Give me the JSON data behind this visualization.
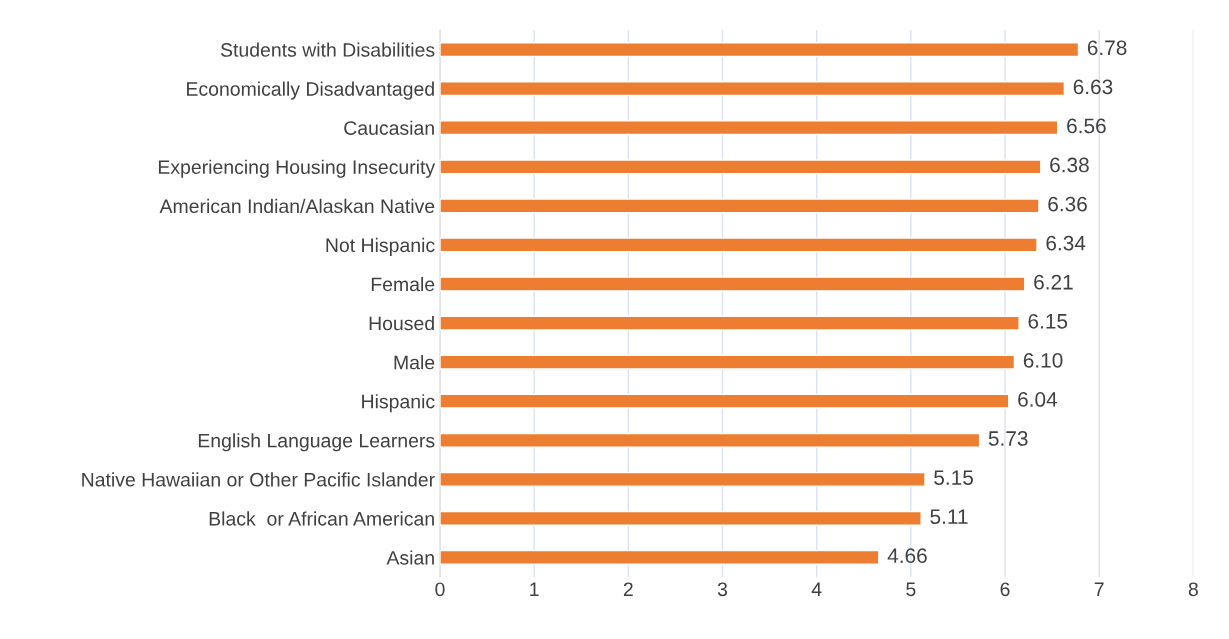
{
  "chart_data": {
    "type": "bar",
    "orientation": "horizontal",
    "categories": [
      "Students with Disabilities",
      "Economically Disadvantaged",
      "Caucasian",
      "Experiencing Housing Insecurity",
      "American Indian/Alaskan Native",
      "Not Hispanic",
      "Female",
      "Housed",
      "Male",
      "Hispanic",
      "English Language Learners",
      "Native Hawaiian or Other Pacific Islander",
      "Black  or African American",
      "Asian"
    ],
    "values": [
      6.78,
      6.63,
      6.56,
      6.38,
      6.36,
      6.34,
      6.21,
      6.15,
      6.1,
      6.04,
      5.73,
      5.15,
      5.11,
      4.66
    ],
    "value_labels": [
      "6.78",
      "6.63",
      "6.56",
      "6.38",
      "6.36",
      "6.34",
      "6.21",
      "6.15",
      "6.10",
      "6.04",
      "5.73",
      "5.15",
      "5.11",
      "4.66"
    ],
    "color": "#ed7d31",
    "xlim": [
      0,
      8
    ],
    "xticks": [
      0,
      1,
      2,
      3,
      4,
      5,
      6,
      7,
      8
    ],
    "grid": "x"
  }
}
